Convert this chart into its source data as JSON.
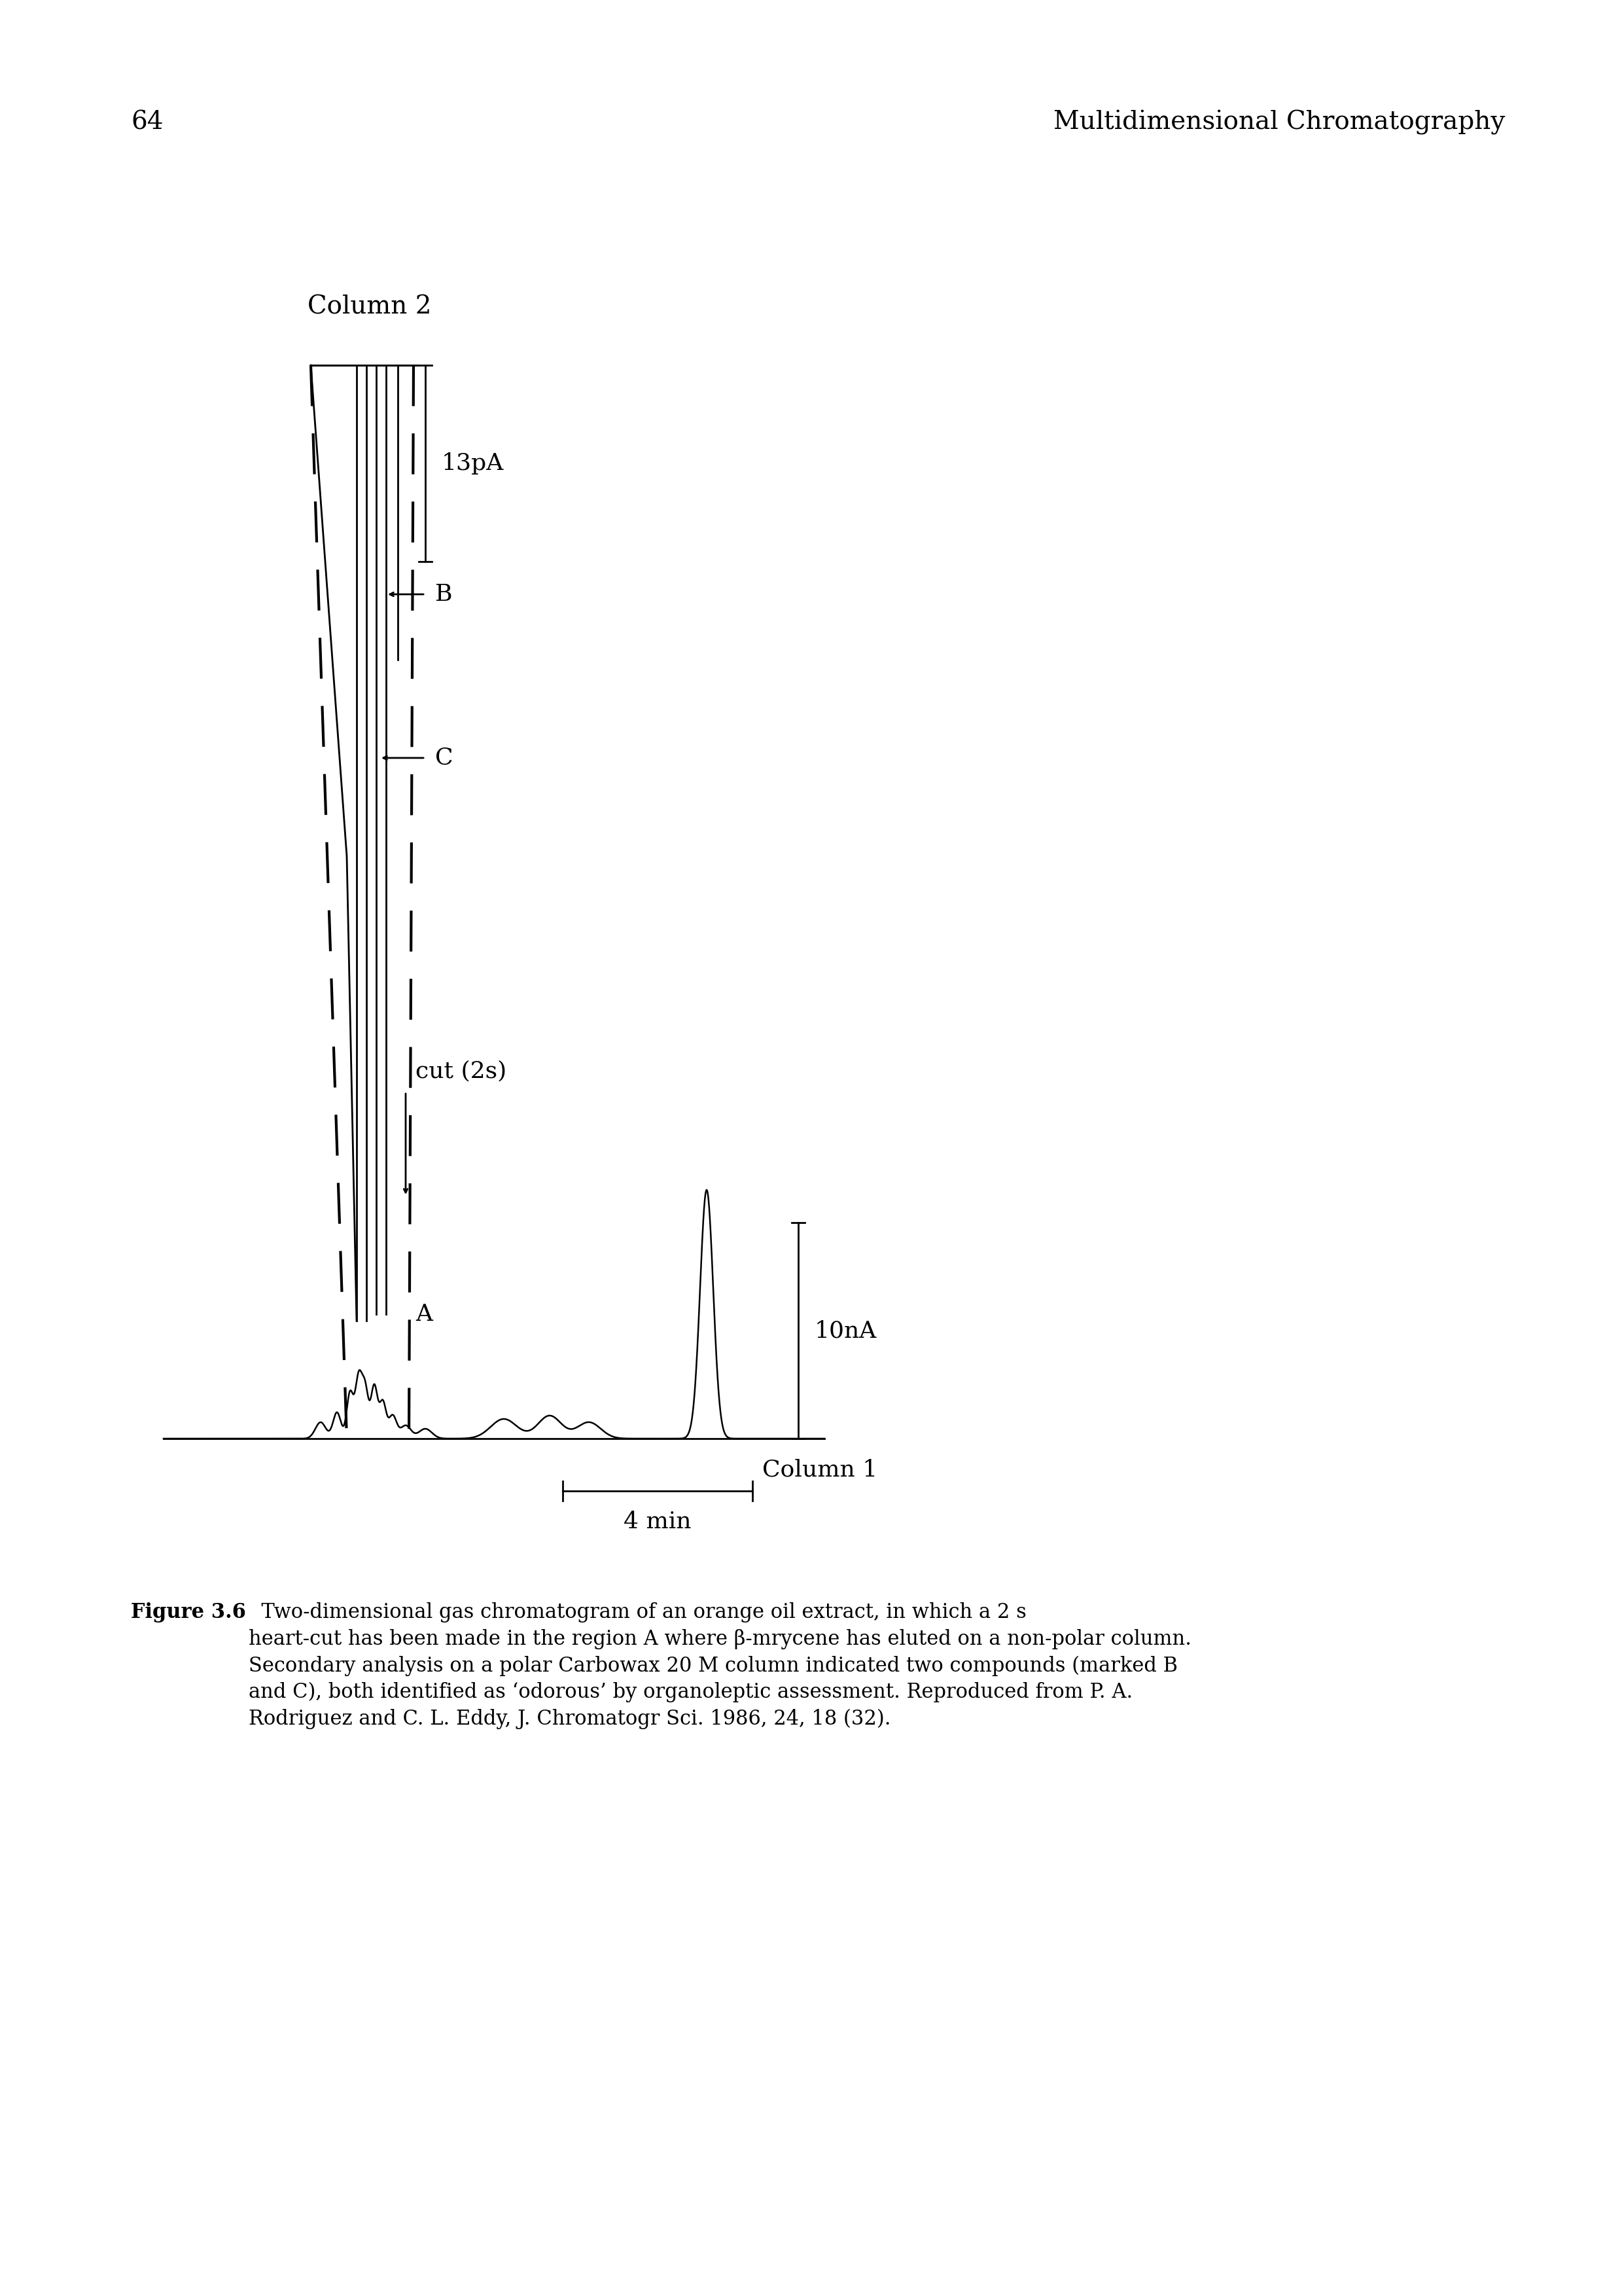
{
  "page_number": "64",
  "header_text": "Multidimensional Chromatography",
  "column2_label": "Column 2",
  "column1_label": "Column 1",
  "scale_col2_label": "13pA",
  "scale_col1_label": "10nA",
  "cut_label": "cut (2s)",
  "label_A": "A",
  "label_B": "B",
  "label_C": "C",
  "xscale_label": "4 min",
  "background_color": "#ffffff",
  "fig_width": 24.79,
  "fig_height": 35.08,
  "caption_bold": "Figure 3.6",
  "caption_normal": "  Two-dimensional gas chromatogram of an orange oil extract, in which a 2 s heart-cut has been made in the region A where β-mrycene has eluted on a non-polar column. Secondary analysis on a polar Carbowax 20 M column indicated two compounds (marked B and C), both identified as ‘odorous’ by organoleptic assessment. Reproduced from P. A. Rodriguez and C. L. Eddy, ",
  "caption_italic": "J. Chromatogr Sci.",
  "caption_end": " 1986, 24, 18 (32)."
}
